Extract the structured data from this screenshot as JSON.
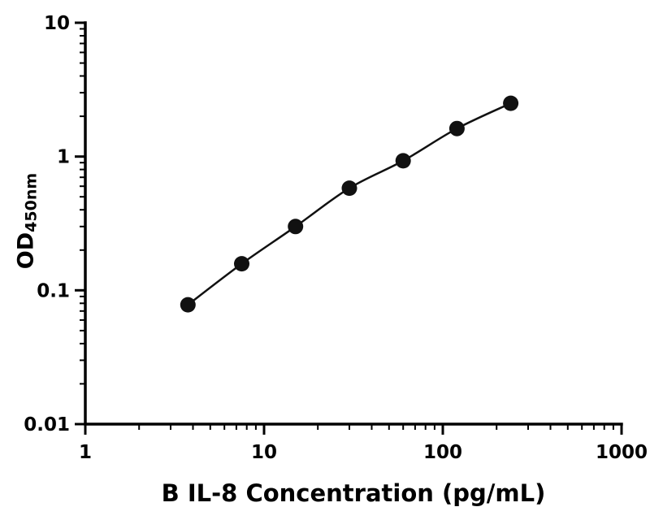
{
  "chart_data": {
    "type": "scatter",
    "title": "",
    "xlabel": "B IL-8 Concentration (pg/mL)",
    "ylabel": "OD",
    "ylabel_subscript": "450nm",
    "xscale": "log",
    "yscale": "log",
    "xlim": [
      1,
      1000
    ],
    "ylim": [
      0.01,
      10
    ],
    "x": [
      3.75,
      7.5,
      15,
      30,
      60,
      120,
      240
    ],
    "y": [
      0.078,
      0.158,
      0.3,
      0.58,
      0.93,
      1.62,
      2.5
    ],
    "x_ticks": [
      1,
      10,
      100,
      1000
    ],
    "x_tick_labels": [
      "1",
      "10",
      "100",
      "1000"
    ],
    "y_ticks": [
      0.01,
      0.1,
      1,
      10
    ],
    "y_tick_labels": [
      "0.01",
      "0.1",
      "1",
      "10"
    ],
    "grid": false,
    "legend": null,
    "marker_color": "#111111",
    "line_color": "#111111",
    "axis_color": "#000000"
  }
}
